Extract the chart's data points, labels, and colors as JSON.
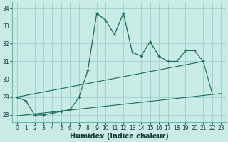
{
  "xlabel": "Humidex (Indice chaleur)",
  "bg_color": "#c8ebe6",
  "grid_color": "#a0d4ce",
  "line_color": "#1a6b5a",
  "xlim": [
    -0.5,
    23.5
  ],
  "ylim": [
    27.6,
    34.3
  ],
  "xticks": [
    0,
    1,
    2,
    3,
    4,
    5,
    6,
    7,
    8,
    9,
    10,
    11,
    12,
    13,
    14,
    15,
    16,
    17,
    18,
    19,
    20,
    21,
    22,
    23
  ],
  "yticks": [
    28,
    29,
    30,
    31,
    32,
    33,
    34
  ],
  "line1_x": [
    0,
    1,
    2,
    3,
    4,
    5,
    6,
    7,
    8,
    9,
    10,
    11,
    12,
    13,
    14,
    15,
    16,
    17,
    18,
    19,
    20,
    21
  ],
  "line1_y": [
    29.0,
    28.8,
    28.0,
    28.0,
    28.1,
    28.2,
    28.3,
    29.0,
    30.5,
    33.7,
    33.3,
    32.5,
    33.7,
    31.5,
    31.3,
    32.1,
    31.3,
    31.0,
    31.0,
    31.6,
    31.6,
    31.0
  ],
  "line2_x": [
    0,
    21,
    22
  ],
  "line2_y": [
    29.0,
    31.0,
    29.2
  ],
  "line3_x": [
    0,
    23
  ],
  "line3_y": [
    27.95,
    29.2
  ],
  "xlabel_fontsize": 7,
  "tick_fontsize": 5.5
}
